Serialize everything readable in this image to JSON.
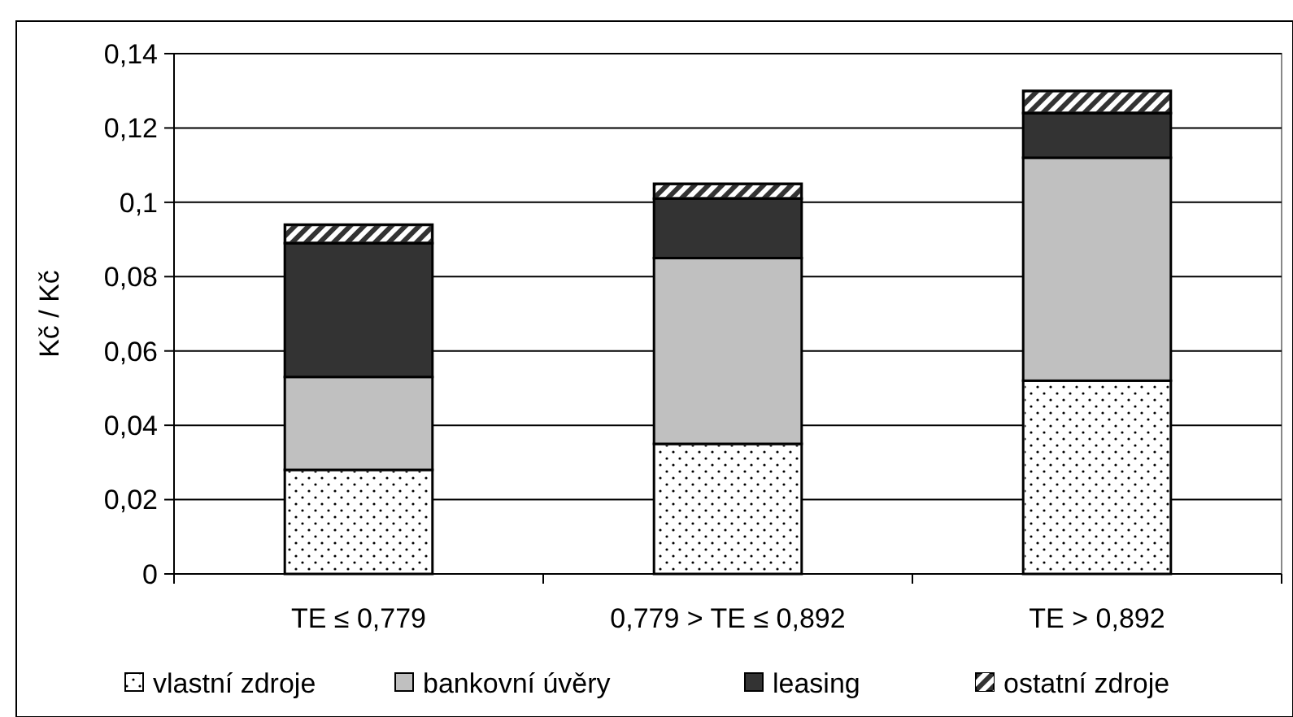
{
  "chart_data": {
    "type": "bar",
    "stacked": true,
    "ylabel": "Kč / Kč",
    "categories": [
      "TE ≤ 0,779",
      "0,779 > TE ≤ 0,892",
      "TE > 0,892"
    ],
    "series": [
      {
        "name": "vlastní zdroje",
        "color": "#ffffff",
        "values": [
          0.028,
          0.035,
          0.052
        ]
      },
      {
        "name": "bankovní úvěry",
        "color": "#c0c0c0",
        "values": [
          0.025,
          0.05,
          0.06
        ]
      },
      {
        "name": "leasing",
        "color": "#333333",
        "values": [
          0.036,
          0.016,
          0.012
        ]
      },
      {
        "name": "ostatní zdroje",
        "color": "#333333",
        "values": [
          0.005,
          0.004,
          0.006
        ]
      }
    ],
    "ylim": [
      0,
      0.14
    ],
    "yticks": [
      {
        "value": 0,
        "label": "0"
      },
      {
        "value": 0.02,
        "label": "0,02"
      },
      {
        "value": 0.04,
        "label": "0,04"
      },
      {
        "value": 0.06,
        "label": "0,06"
      },
      {
        "value": 0.08,
        "label": "0,08"
      },
      {
        "value": 0.1,
        "label": "0,1"
      },
      {
        "value": 0.12,
        "label": "0,12"
      },
      {
        "value": 0.14,
        "label": "0,14"
      }
    ],
    "grid": "y",
    "legend": "bottom"
  }
}
